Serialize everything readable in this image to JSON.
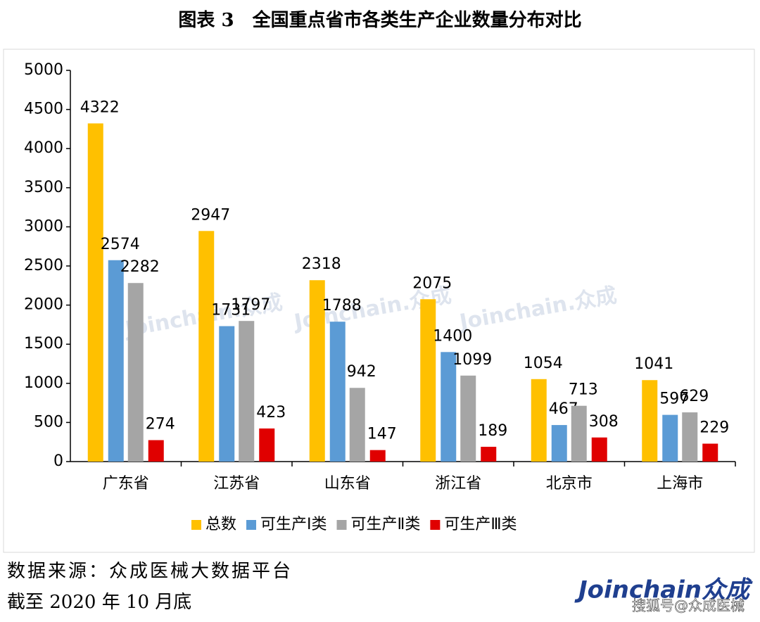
{
  "chart_data": {
    "type": "bar",
    "title": "图表 3　全国重点省市各类生产企业数量分布对比",
    "categories": [
      "广东省",
      "江苏省",
      "山东省",
      "浙江省",
      "北京市",
      "上海市"
    ],
    "series": [
      {
        "name": "总数",
        "color": "#ffc000",
        "values": [
          4322,
          2947,
          2318,
          2075,
          1054,
          1041
        ]
      },
      {
        "name": "可生产Ⅰ类",
        "color": "#5b9bd5",
        "values": [
          2574,
          1731,
          1788,
          1400,
          467,
          597
        ]
      },
      {
        "name": "可生产Ⅱ类",
        "color": "#a5a5a5",
        "values": [
          2282,
          1797,
          942,
          1099,
          713,
          629
        ]
      },
      {
        "name": "可生产Ⅲ类",
        "color": "#e00000",
        "values": [
          274,
          423,
          147,
          189,
          308,
          229
        ]
      }
    ],
    "ylim": [
      0,
      5000
    ],
    "yticks": [
      0,
      500,
      1000,
      1500,
      2000,
      2500,
      3000,
      3500,
      4000,
      4500,
      5000
    ],
    "legend": "bottom",
    "watermark": "Joinchain.众成",
    "notes": [
      "数据来源：众成医械大数据平台",
      "截至 2020 年 10 月底"
    ],
    "logo": "Joinchain众成",
    "credit": "搜狐号@众成医械"
  }
}
